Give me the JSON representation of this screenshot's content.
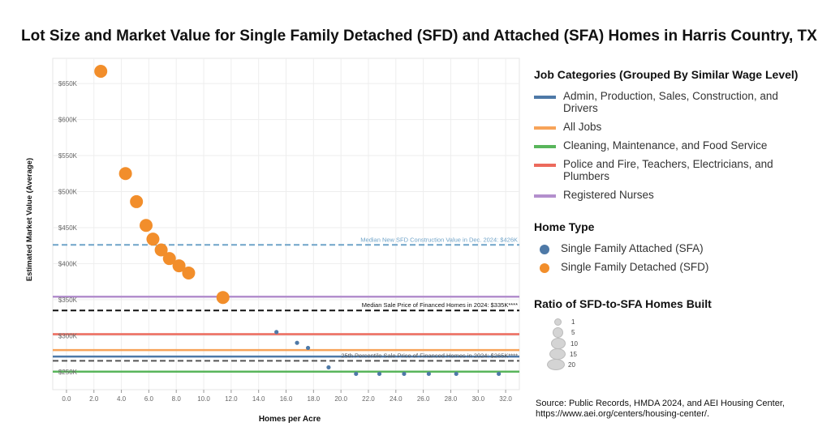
{
  "title": "Lot Size and Market Value for Single Family Detached (SFD) and Attached (SFA) Homes in Harris Country, TX",
  "legend": {
    "job_heading": "Job Categories (Grouped By Similar Wage Level)",
    "jobs": [
      {
        "label": "Admin, Production, Sales, Construction, and Drivers",
        "color": "#4e79a7"
      },
      {
        "label": "All Jobs",
        "color": "#f7a359"
      },
      {
        "label": "Cleaning, Maintenance, and Food Service",
        "color": "#59b55b"
      },
      {
        "label": "Police and Fire, Teachers, Electricians, and Plumbers",
        "color": "#ec6a5c"
      },
      {
        "label": "Registered Nurses",
        "color": "#b38fcd"
      }
    ],
    "home_heading": "Home Type",
    "homes": [
      {
        "label": "Single Family Attached (SFA)",
        "color": "#4e79a7"
      },
      {
        "label": "Single Family Detached (SFD)",
        "color": "#f28e2b"
      }
    ],
    "ratio_heading": "Ratio of SFD-to-SFA Homes Built",
    "ratio_sizes": [
      "1",
      "5",
      "10",
      "15",
      "20"
    ]
  },
  "source": {
    "line1": "Source: Public Records, HMDA 2024, and AEI Housing Center,",
    "line2": "https://www.aei.org/centers/housing-center/."
  },
  "chart_data": {
    "type": "scatter",
    "xlabel": "Homes per Acre",
    "ylabel": "Estimated Market Value (Average)",
    "xlim": [
      -1,
      33
    ],
    "ylim": [
      225000,
      685000
    ],
    "x_ticks": [
      "0.0",
      "2.0",
      "4.0",
      "6.0",
      "8.0",
      "10.0",
      "12.0",
      "14.0",
      "16.0",
      "18.0",
      "20.0",
      "22.0",
      "24.0",
      "26.0",
      "28.0",
      "30.0",
      "32.0"
    ],
    "y_ticks": [
      "$250K",
      "$300K",
      "$350K",
      "$400K",
      "$450K",
      "$500K",
      "$550K",
      "$600K",
      "$650K"
    ],
    "grid": true,
    "series": [
      {
        "name": "Single Family Detached (SFD)",
        "color": "#f28e2b",
        "points": [
          {
            "x": 2.5,
            "y": 667000
          },
          {
            "x": 4.3,
            "y": 525000
          },
          {
            "x": 5.1,
            "y": 486000
          },
          {
            "x": 5.8,
            "y": 453000
          },
          {
            "x": 6.3,
            "y": 434000
          },
          {
            "x": 6.9,
            "y": 419000
          },
          {
            "x": 7.5,
            "y": 407000
          },
          {
            "x": 8.2,
            "y": 397000
          },
          {
            "x": 8.9,
            "y": 387000
          },
          {
            "x": 11.4,
            "y": 353000
          }
        ]
      },
      {
        "name": "Single Family Attached (SFA)",
        "color": "#4e79a7",
        "points": [
          {
            "x": 15.3,
            "y": 305000
          },
          {
            "x": 16.8,
            "y": 290000
          },
          {
            "x": 17.6,
            "y": 283000
          },
          {
            "x": 19.1,
            "y": 256000
          },
          {
            "x": 21.1,
            "y": 247000
          },
          {
            "x": 22.8,
            "y": 247000
          },
          {
            "x": 24.6,
            "y": 247000
          },
          {
            "x": 26.4,
            "y": 247000
          },
          {
            "x": 28.4,
            "y": 247000
          },
          {
            "x": 31.5,
            "y": 247000
          }
        ]
      }
    ],
    "reference_lines": [
      {
        "y": 354000,
        "color": "#b38fcd",
        "style": "solid",
        "label": ""
      },
      {
        "y": 302000,
        "color": "#ec6a5c",
        "style": "solid",
        "label": ""
      },
      {
        "y": 280000,
        "color": "#f7a359",
        "style": "solid",
        "label": ""
      },
      {
        "y": 271000,
        "color": "#4e79a7",
        "style": "solid",
        "label": ""
      },
      {
        "y": 250000,
        "color": "#59b55b",
        "style": "solid",
        "label": ""
      },
      {
        "y": 426000,
        "color": "#6fa3c8",
        "style": "dashed",
        "label": "Median New SFD Construction Value in Dec. 2024: $426K"
      },
      {
        "y": 335000,
        "color": "#111111",
        "style": "dashed",
        "label": "Median Sale Price of Financed Homes in 2024: $335K****"
      },
      {
        "y": 265000,
        "color": "#555555",
        "style": "dashed",
        "label": "25th Percentile Sale Price of Financed Homes in 2024: $265K****"
      }
    ]
  }
}
